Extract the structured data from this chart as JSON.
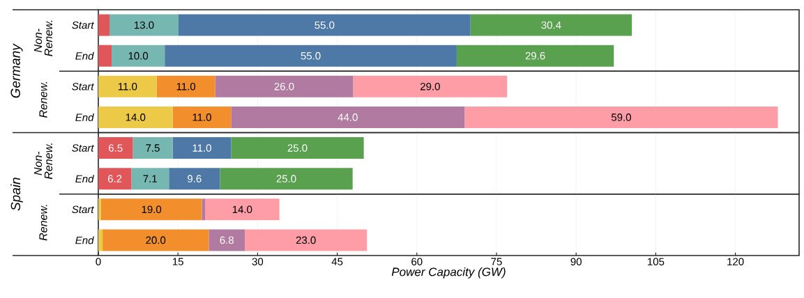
{
  "chart_data": [
    {
      "type": "bar",
      "orientation": "horizontal",
      "stacked": true,
      "ylabel": "Non-Renew.",
      "annotations": [
        "Germany"
      ],
      "categories": [
        "Start",
        "End"
      ],
      "xlim": [
        0,
        132
      ],
      "xticks": [
        0,
        15,
        30,
        45,
        60,
        75,
        90,
        105,
        120
      ],
      "grid": "x",
      "tick_labels": "y",
      "series": [
        {
          "color": "#e15759",
          "values": [
            2.1,
            2.5
          ],
          "value_labels": [
            null,
            null
          ]
        },
        {
          "color": "#76b7b2",
          "values": [
            13.0,
            10.0
          ],
          "value_labels": [
            "13.0",
            "10.0"
          ]
        },
        {
          "color": "#4e79a7",
          "values": [
            55.0,
            55.0
          ],
          "value_labels": [
            "55.0",
            "55.0"
          ]
        },
        {
          "color": "#59a14f",
          "values": [
            30.4,
            29.6
          ],
          "value_labels": [
            "30.4",
            "29.6"
          ]
        }
      ]
    },
    {
      "type": "bar",
      "orientation": "horizontal",
      "stacked": true,
      "ylabel": "Renew.",
      "categories": [
        "Start",
        "End"
      ],
      "xlim": [
        0,
        132
      ],
      "xticks": [
        0,
        15,
        30,
        45,
        60,
        75,
        90,
        105,
        120
      ],
      "grid": "x",
      "tick_labels": "y",
      "series": [
        {
          "color": "#edc948",
          "values": [
            11.0,
            14.0
          ],
          "value_labels": [
            "11.0",
            "14.0"
          ]
        },
        {
          "color": "#f28e2b",
          "values": [
            11.0,
            11.0
          ],
          "value_labels": [
            "11.0",
            "11.0"
          ]
        },
        {
          "color": "#b07aa1",
          "values": [
            26.0,
            44.0
          ],
          "value_labels": [
            "26.0",
            "44.0"
          ]
        },
        {
          "color": "#ff9da7",
          "values": [
            29.0,
            59.0
          ],
          "value_labels": [
            "29.0",
            "59.0"
          ]
        }
      ]
    },
    {
      "type": "bar",
      "orientation": "horizontal",
      "stacked": true,
      "ylabel": "Non-Renew.",
      "annotations": [
        "Spain"
      ],
      "categories": [
        "Start",
        "End"
      ],
      "xlim": [
        0,
        132
      ],
      "xticks": [
        0,
        15,
        30,
        45,
        60,
        75,
        90,
        105,
        120
      ],
      "grid": "x",
      "tick_labels": "y",
      "series": [
        {
          "color": "#e15759",
          "values": [
            6.5,
            6.2
          ],
          "value_labels": [
            "6.5",
            "6.2"
          ]
        },
        {
          "color": "#76b7b2",
          "values": [
            7.5,
            7.1
          ],
          "value_labels": [
            "7.5",
            "7.1"
          ]
        },
        {
          "color": "#4e79a7",
          "values": [
            11.0,
            9.6
          ],
          "value_labels": [
            "11.0",
            "9.6"
          ]
        },
        {
          "color": "#59a14f",
          "values": [
            25.0,
            25.0
          ],
          "value_labels": [
            "25.0",
            "25.0"
          ]
        }
      ]
    },
    {
      "type": "bar",
      "orientation": "horizontal",
      "stacked": true,
      "ylabel": "Renew.",
      "xlabel": "Power Capacity (GW)",
      "categories": [
        "Start",
        "End"
      ],
      "xlim": [
        0,
        132
      ],
      "xticks": [
        0,
        15,
        30,
        45,
        60,
        75,
        90,
        105,
        120
      ],
      "grid": "x",
      "series": [
        {
          "color": "#edc948",
          "values": [
            0.5,
            0.8
          ],
          "value_labels": [
            null,
            null
          ]
        },
        {
          "color": "#f28e2b",
          "values": [
            19.0,
            20.0
          ],
          "value_labels": [
            "19.0",
            "20.0"
          ]
        },
        {
          "color": "#b07aa1",
          "values": [
            0.6,
            6.8
          ],
          "value_labels": [
            null,
            "6.8"
          ]
        },
        {
          "color": "#ff9da7",
          "values": [
            14.0,
            23.0
          ],
          "value_labels": [
            "14.0",
            "23.0"
          ]
        }
      ]
    }
  ]
}
